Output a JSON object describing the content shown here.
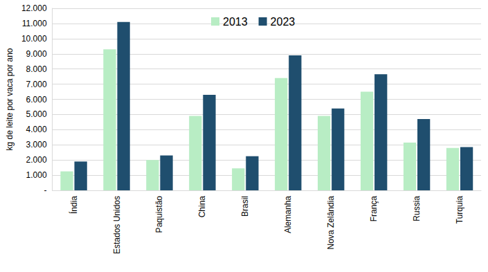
{
  "chart_data": {
    "type": "bar",
    "y_label": "kg de leite por vaca por ano",
    "categories": [
      "Índia",
      "Estados Unidos",
      "Paquistão",
      "China",
      "Brasil",
      "Alemanha",
      "Nova Zelândia",
      "França",
      "Russia",
      "Turquia"
    ],
    "series": [
      {
        "name": "2013",
        "color": "#b8edc4",
        "values": [
          1250,
          9300,
          2000,
          4900,
          1450,
          7400,
          4900,
          6500,
          3150,
          2800
        ]
      },
      {
        "name": "2023",
        "color": "#1f4e6e",
        "values": [
          1900,
          11100,
          2300,
          6300,
          2250,
          8900,
          5400,
          7650,
          4700,
          2850
        ]
      }
    ],
    "ylim": [
      0,
      12000
    ],
    "yticks": [
      {
        "value": 0,
        "label": "-"
      },
      {
        "value": 1000,
        "label": "1.000"
      },
      {
        "value": 2000,
        "label": "2.000"
      },
      {
        "value": 3000,
        "label": "3.000"
      },
      {
        "value": 4000,
        "label": "4.000"
      },
      {
        "value": 5000,
        "label": "5.000"
      },
      {
        "value": 6000,
        "label": "6.000"
      },
      {
        "value": 7000,
        "label": "7.000"
      },
      {
        "value": 8000,
        "label": "8.000"
      },
      {
        "value": 9000,
        "label": "9.000"
      },
      {
        "value": 10000,
        "label": "10.000"
      },
      {
        "value": 11000,
        "label": "11.000"
      },
      {
        "value": 12000,
        "label": "12.000"
      }
    ],
    "grid": true,
    "legend": "top"
  }
}
